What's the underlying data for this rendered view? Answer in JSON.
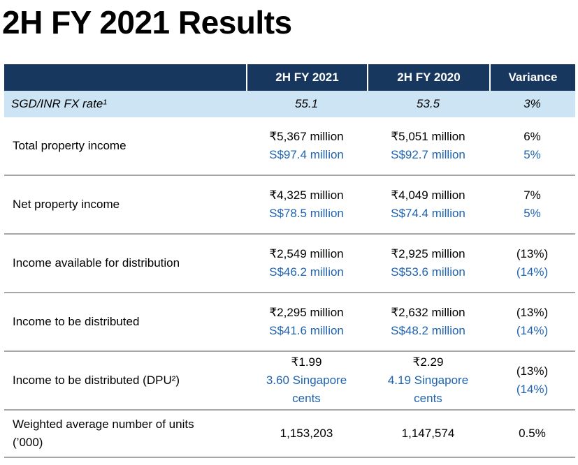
{
  "page": {
    "title": "2H FY 2021 Results"
  },
  "colors": {
    "header_bg": "#17375E",
    "header_text": "#FFFFFF",
    "fx_row_bg": "#CCE4F4",
    "secondary_value_blue": "#1F63B0",
    "row_separator_gray": "#A6A6A6",
    "body_text": "#000000"
  },
  "table": {
    "headers": [
      "2H FY 2021",
      "2H FY 2020",
      "Variance"
    ],
    "fx_row": {
      "label": "SGD/INR FX rate¹",
      "y2021": "55.1",
      "y2020": "53.5",
      "variance": "3%"
    },
    "rows": [
      {
        "label": "Total property income",
        "y2021": [
          "₹5,367 million",
          "S$97.4 million"
        ],
        "y2020": [
          "₹5,051 million",
          "S$92.7 million"
        ],
        "variance": [
          "6%",
          "5%"
        ]
      },
      {
        "label": "Net property income",
        "y2021": [
          "₹4,325 million",
          "S$78.5 million"
        ],
        "y2020": [
          "₹4,049 million",
          "S$74.4 million"
        ],
        "variance": [
          "7%",
          "5%"
        ]
      },
      {
        "label": "Income available for distribution",
        "y2021": [
          "₹2,549 million",
          "S$46.2 million"
        ],
        "y2020": [
          "₹2,925 million",
          "S$53.6 million"
        ],
        "variance": [
          "(13%)",
          "(14%)"
        ]
      },
      {
        "label": "Income to be distributed",
        "y2021": [
          "₹2,295 million",
          "S$41.6 million"
        ],
        "y2020": [
          "₹2,632 million",
          "S$48.2 million"
        ],
        "variance": [
          "(13%)",
          "(14%)"
        ]
      },
      {
        "label": "Income to be distributed (DPU²)",
        "y2021": [
          "₹1.99",
          "3.60 Singapore cents"
        ],
        "y2020": [
          "₹2.29",
          "4.19 Singapore cents"
        ],
        "variance": [
          "(13%)",
          "(14%)"
        ]
      },
      {
        "label": "Weighted average number of units (’000)",
        "y2021": [
          "1,153,203"
        ],
        "y2020": [
          "1,147,574"
        ],
        "variance": [
          "0.5%"
        ]
      }
    ]
  }
}
